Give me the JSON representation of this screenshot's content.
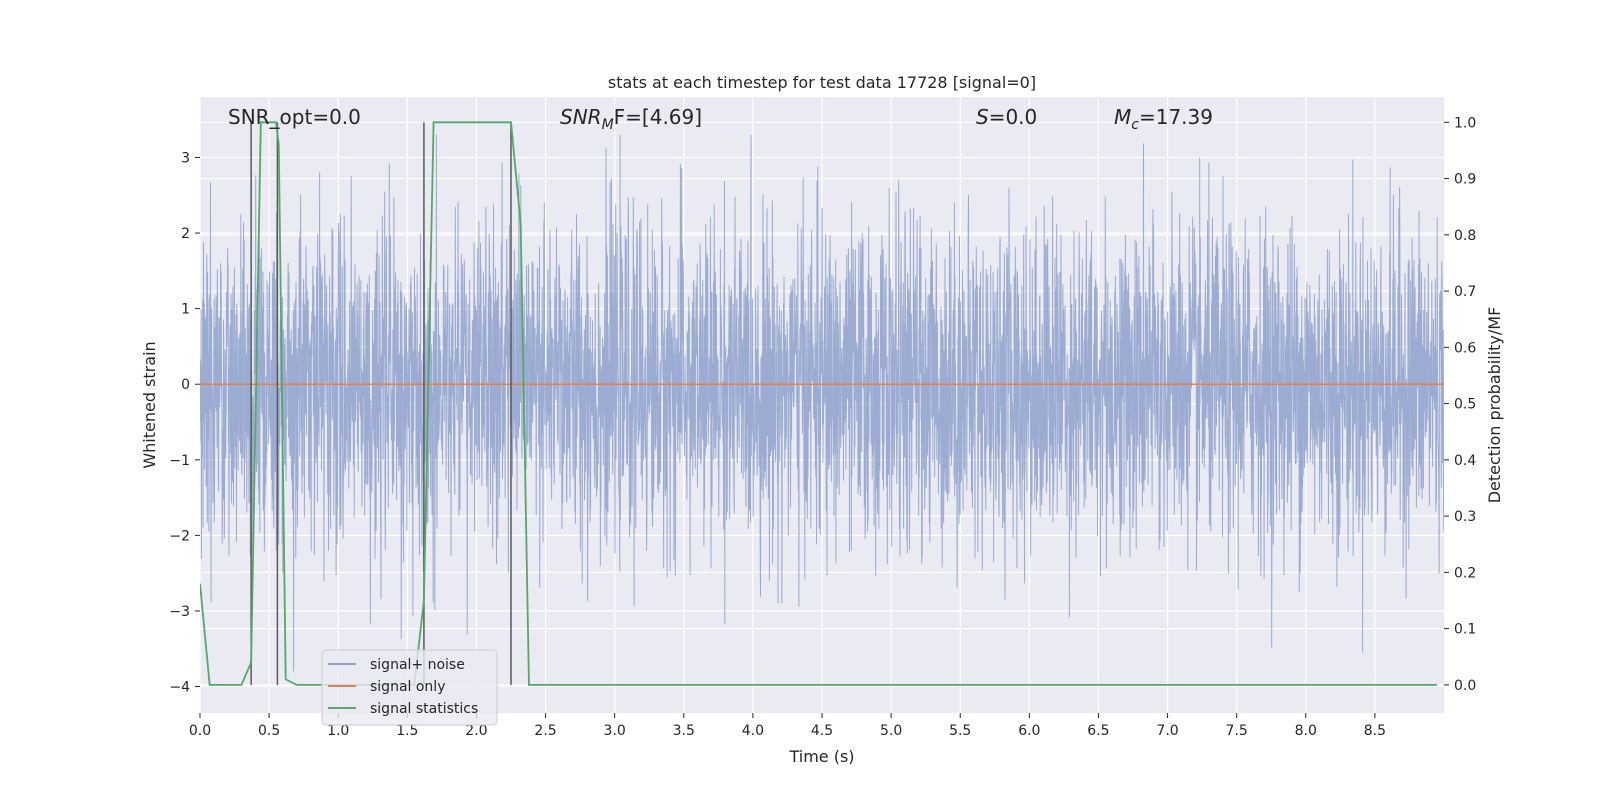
{
  "chart_data": {
    "type": "line",
    "title": "stats at each timestep for test data 17728 [signal=0]",
    "xlabel": "Time (s)",
    "ylabel": "Whitened strain",
    "ylabel_right": "Detection probability/MF",
    "xlim": [
      0,
      9.0
    ],
    "ylim": [
      -4.35,
      3.8
    ],
    "ylim_right": [
      -0.05,
      1.045
    ],
    "x_ticks": [
      0.0,
      0.5,
      1.0,
      1.5,
      2.0,
      2.5,
      3.0,
      3.5,
      4.0,
      4.5,
      5.0,
      5.5,
      6.0,
      6.5,
      7.0,
      7.5,
      8.0,
      8.5
    ],
    "x_tick_labels": [
      "0.0",
      "0.5",
      "1.0",
      "1.5",
      "2.0",
      "2.5",
      "3.0",
      "3.5",
      "4.0",
      "4.5",
      "5.0",
      "5.5",
      "6.0",
      "6.5",
      "7.0",
      "7.5",
      "8.0",
      "8.5"
    ],
    "y_ticks": [
      -4,
      -3,
      -2,
      -1,
      0,
      1,
      2,
      3
    ],
    "y_tick_labels": [
      "−4",
      "−3",
      "−2",
      "−1",
      "0",
      "1",
      "2",
      "3"
    ],
    "y2_ticks": [
      0.0,
      0.1,
      0.2,
      0.3,
      0.4,
      0.5,
      0.6,
      0.7,
      0.8,
      0.9,
      1.0
    ],
    "y2_tick_labels": [
      "0.0",
      "0.1",
      "0.2",
      "0.3",
      "0.4",
      "0.5",
      "0.6",
      "0.7",
      "0.8",
      "0.9",
      "1.0"
    ],
    "grid": true,
    "legend_position": "bottom-left",
    "annotations": {
      "snr_opt": "SNR_opt=0.0",
      "snr_mf_sym": "SNR",
      "snr_mf_sub": "M",
      "snr_mf_rest": "F=[4.69]",
      "s_sym": "S",
      "s_rest": "=0.0",
      "mc_sym": "M",
      "mc_sub": "c",
      "mc_rest": "=17.39"
    },
    "series": [
      {
        "name": "signal+ noise",
        "color": "#8da0cb",
        "kind": "noise",
        "x_range": [
          0,
          9.0
        ],
        "y_envelope": [
          -3.8,
          3.3
        ],
        "note_values": "whitened strain noise, approx. Gaussian, range about -3.8 to 3.3"
      },
      {
        "name": "signal only",
        "color": "#dd8452",
        "x": [
          0,
          9.0
        ],
        "y": [
          0,
          0
        ]
      },
      {
        "name": "signal statistics",
        "color": "#55a868",
        "axis": "right",
        "x": [
          0.0,
          0.07,
          0.15,
          0.3,
          0.37,
          0.44,
          0.55,
          0.57,
          0.62,
          0.7,
          1.55,
          1.62,
          1.69,
          2.25,
          2.32,
          2.38,
          2.45,
          8.95
        ],
        "y": [
          0.18,
          0.0,
          0.0,
          0.0,
          0.04,
          1.0,
          1.0,
          0.96,
          0.01,
          0.0,
          0.0,
          0.15,
          1.0,
          1.0,
          0.82,
          0.0,
          0.0,
          0.0
        ]
      }
    ],
    "detection_markers": {
      "color": "#5a5a5a",
      "x": [
        0.37,
        0.56,
        1.62,
        2.25
      ],
      "y_top": 1.0,
      "y_bottom": 0.0
    }
  },
  "legend": [
    {
      "label": "signal+ noise",
      "color": "#8da0cb"
    },
    {
      "label": "signal only",
      "color": "#dd8452"
    },
    {
      "label": "signal statistics",
      "color": "#55a868"
    }
  ]
}
